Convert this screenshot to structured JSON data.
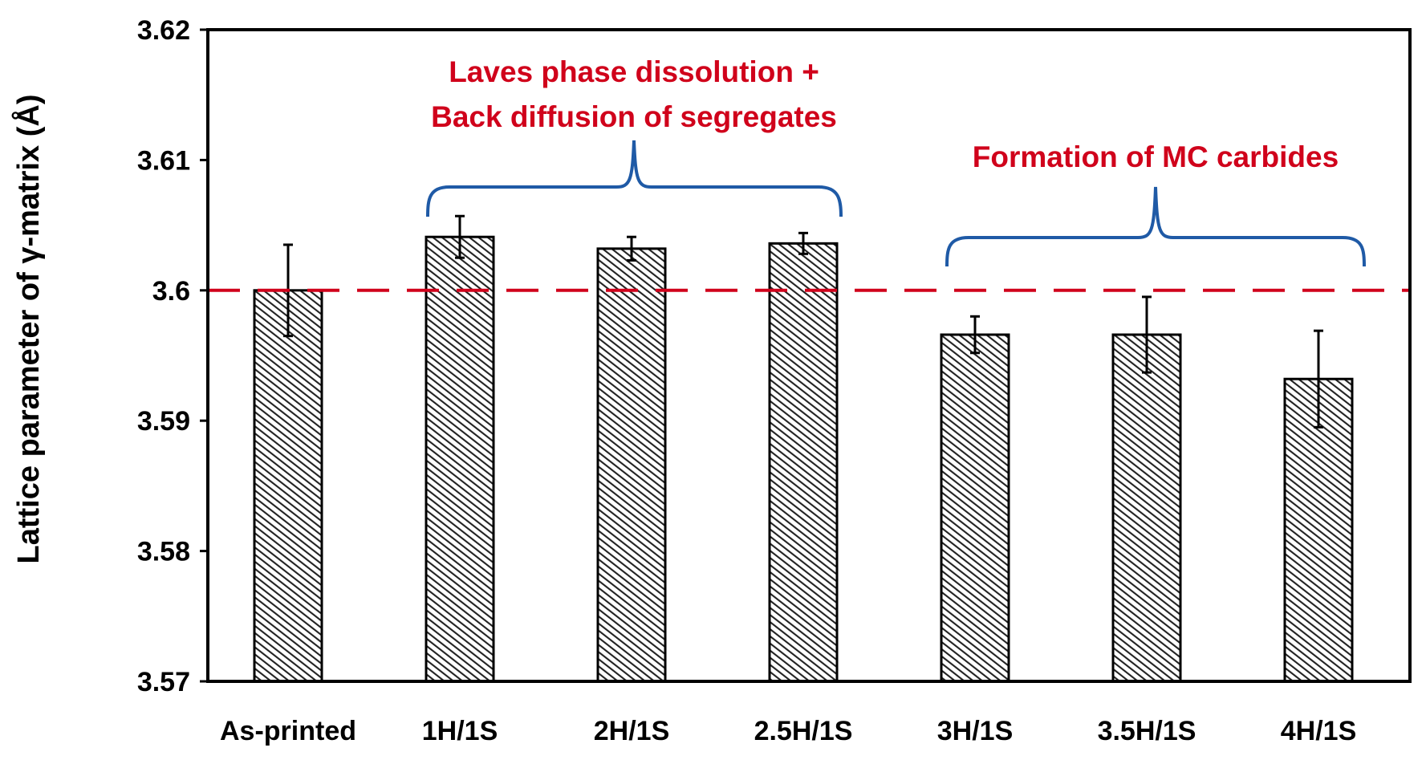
{
  "chart_data": {
    "type": "bar",
    "title": "",
    "xlabel": "",
    "ylabel": "Lattice parameter of γ-matrix (Å)",
    "ylim": [
      3.57,
      3.62
    ],
    "yticks": [
      3.57,
      3.58,
      3.59,
      3.6,
      3.61,
      3.62
    ],
    "ytick_labels": [
      "3.57",
      "3.58",
      "3.59",
      "3.6",
      "3.61",
      "3.62"
    ],
    "grid": false,
    "categories": [
      "As-printed",
      "1H/1S",
      "2H/1S",
      "2.5H/1S",
      "3H/1S",
      "3.5H/1S",
      "4H/1S"
    ],
    "values": [
      3.6,
      3.6041,
      3.6032,
      3.6036,
      3.5966,
      3.5966,
      3.5932
    ],
    "errors": [
      0.0035,
      0.0016,
      0.0009,
      0.0008,
      0.0014,
      0.0029,
      0.0037
    ],
    "bar_pattern": "diagonal-hatch",
    "bar_color": "#000000",
    "reference_line": {
      "value": 3.6,
      "style": "dashed",
      "color": "#d0021b"
    },
    "annotations": [
      {
        "lines": [
          "Laves phase dissolution +",
          "Back diffusion of segregates"
        ],
        "color": "#d0021b",
        "brace_color": "#1f5aa6",
        "spans": [
          "1H/1S",
          "2.5H/1S"
        ]
      },
      {
        "lines": [
          "Formation of MC carbides"
        ],
        "color": "#d0021b",
        "brace_color": "#1f5aa6",
        "spans": [
          "3H/1S",
          "4H/1S"
        ]
      }
    ]
  }
}
